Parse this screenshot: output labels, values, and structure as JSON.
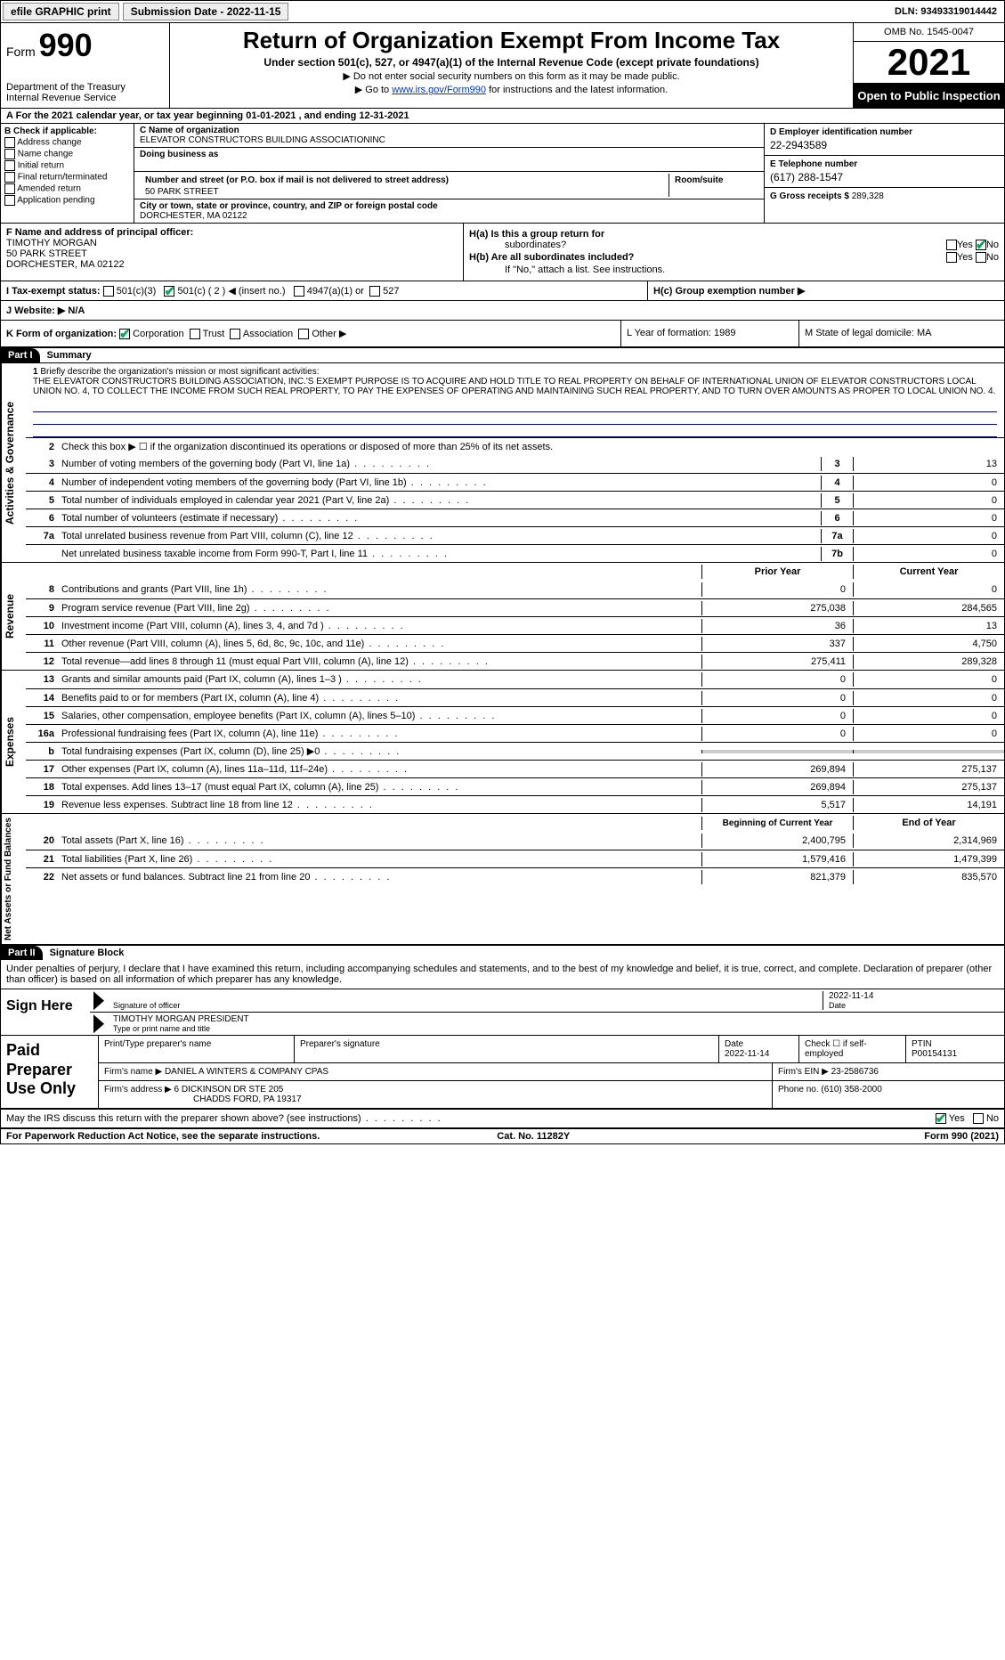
{
  "topbar": {
    "efile": "efile GRAPHIC print",
    "submission": "Submission Date - 2022-11-15",
    "dln": "DLN: 93493319014442"
  },
  "header": {
    "form_label": "Form",
    "form_num": "990",
    "dept": "Department of the Treasury",
    "irs": "Internal Revenue Service",
    "title": "Return of Organization Exempt From Income Tax",
    "sub": "Under section 501(c), 527, or 4947(a)(1) of the Internal Revenue Code (except private foundations)",
    "line1_pre": "▶ Do not enter social security numbers on this form as it may be made public.",
    "line2_pre": "▶ Go to ",
    "line2_link": "www.irs.gov/Form990",
    "line2_post": " for instructions and the latest information.",
    "omb": "OMB No. 1545-0047",
    "year": "2021",
    "open": "Open to Public Inspection"
  },
  "rowA": "For the 2021 calendar year, or tax year beginning 01-01-2021   , and ending 12-31-2021",
  "boxB": {
    "title": "B Check if applicable:",
    "items": [
      "Address change",
      "Name change",
      "Initial return",
      "Final return/terminated",
      "Amended return",
      "Application pending"
    ]
  },
  "boxC": {
    "name_label": "C Name of organization",
    "name": "ELEVATOR CONSTRUCTORS BUILDING ASSOCIATIONINC",
    "dba_label": "Doing business as",
    "street_label": "Number and street (or P.O. box if mail is not delivered to street address)",
    "room_label": "Room/suite",
    "street": "50 PARK STREET",
    "city_label": "City or town, state or province, country, and ZIP or foreign postal code",
    "city": "DORCHESTER, MA  02122"
  },
  "boxD": {
    "label": "D Employer identification number",
    "val": "22-2943589"
  },
  "boxE": {
    "label": "E Telephone number",
    "val": "(617) 288-1547"
  },
  "boxG": {
    "label": "G Gross receipts $",
    "val": "289,328"
  },
  "boxF": {
    "label": "F  Name and address of principal officer:",
    "name": "TIMOTHY MORGAN",
    "street": "50 PARK STREET",
    "city": "DORCHESTER, MA  02122"
  },
  "boxH": {
    "a_label": "H(a)  Is this a group return for",
    "a_sub": "subordinates?",
    "b_label": "H(b)  Are all subordinates included?",
    "b_note": "If \"No,\" attach a list. See instructions.",
    "c_label": "H(c)  Group exemption number ▶"
  },
  "rowI": {
    "label": "I    Tax-exempt status:",
    "opts": [
      "501(c)(3)",
      "501(c) ( 2 ) ◀ (insert no.)",
      "4947(a)(1) or",
      "527"
    ]
  },
  "rowJ": {
    "label": "J   Website: ▶",
    "val": "N/A"
  },
  "rowK": {
    "label": "K Form of organization:",
    "opts": [
      "Corporation",
      "Trust",
      "Association",
      "Other ▶"
    ],
    "L": "L Year of formation: 1989",
    "M": "M State of legal domicile: MA"
  },
  "part1": {
    "hdr": "Part I",
    "title": "Summary",
    "side1": "Activities & Governance",
    "side2": "Revenue",
    "side3": "Expenses",
    "side4": "Net Assets or Fund Balances",
    "l1": "Briefly describe the organization's mission or most significant activities:",
    "mission": "THE ELEVATOR CONSTRUCTORS BUILDING ASSOCIATION, INC.'S EXEMPT PURPOSE IS TO ACQUIRE AND HOLD TITLE TO REAL PROPERTY ON BEHALF OF INTERNATIONAL UNION OF ELEVATOR CONSTRUCTORS LOCAL UNION NO. 4, TO COLLECT THE INCOME FROM SUCH REAL PROPERTY, TO PAY THE EXPENSES OF OPERATING AND MAINTAINING SUCH REAL PROPERTY, AND TO TURN OVER AMOUNTS AS PROPER TO LOCAL UNION NO. 4.",
    "l2": "Check this box ▶ ☐  if the organization discontinued its operations or disposed of more than 25% of its net assets.",
    "lines_ag": [
      {
        "n": "3",
        "t": "Number of voting members of the governing body (Part VI, line 1a)",
        "b": "3",
        "v": "13"
      },
      {
        "n": "4",
        "t": "Number of independent voting members of the governing body (Part VI, line 1b)",
        "b": "4",
        "v": "0"
      },
      {
        "n": "5",
        "t": "Total number of individuals employed in calendar year 2021 (Part V, line 2a)",
        "b": "5",
        "v": "0"
      },
      {
        "n": "6",
        "t": "Total number of volunteers (estimate if necessary)",
        "b": "6",
        "v": "0"
      },
      {
        "n": "7a",
        "t": "Total unrelated business revenue from Part VIII, column (C), line 12",
        "b": "7a",
        "v": "0"
      },
      {
        "n": "",
        "t": "Net unrelated business taxable income from Form 990-T, Part I, line 11",
        "b": "7b",
        "v": "0"
      }
    ],
    "col_prior": "Prior Year",
    "col_curr": "Current Year",
    "lines_rev": [
      {
        "n": "8",
        "t": "Contributions and grants (Part VIII, line 1h)",
        "p": "0",
        "c": "0"
      },
      {
        "n": "9",
        "t": "Program service revenue (Part VIII, line 2g)",
        "p": "275,038",
        "c": "284,565"
      },
      {
        "n": "10",
        "t": "Investment income (Part VIII, column (A), lines 3, 4, and 7d )",
        "p": "36",
        "c": "13"
      },
      {
        "n": "11",
        "t": "Other revenue (Part VIII, column (A), lines 5, 6d, 8c, 9c, 10c, and 11e)",
        "p": "337",
        "c": "4,750"
      },
      {
        "n": "12",
        "t": "Total revenue—add lines 8 through 11 (must equal Part VIII, column (A), line 12)",
        "p": "275,411",
        "c": "289,328"
      }
    ],
    "lines_exp": [
      {
        "n": "13",
        "t": "Grants and similar amounts paid (Part IX, column (A), lines 1–3 )",
        "p": "0",
        "c": "0"
      },
      {
        "n": "14",
        "t": "Benefits paid to or for members (Part IX, column (A), line 4)",
        "p": "0",
        "c": "0"
      },
      {
        "n": "15",
        "t": "Salaries, other compensation, employee benefits (Part IX, column (A), lines 5–10)",
        "p": "0",
        "c": "0"
      },
      {
        "n": "16a",
        "t": "Professional fundraising fees (Part IX, column (A), line 11e)",
        "p": "0",
        "c": "0"
      },
      {
        "n": "b",
        "t": "Total fundraising expenses (Part IX, column (D), line 25) ▶0",
        "p": "",
        "c": "",
        "shade": true
      },
      {
        "n": "17",
        "t": "Other expenses (Part IX, column (A), lines 11a–11d, 11f–24e)",
        "p": "269,894",
        "c": "275,137"
      },
      {
        "n": "18",
        "t": "Total expenses. Add lines 13–17 (must equal Part IX, column (A), line 25)",
        "p": "269,894",
        "c": "275,137"
      },
      {
        "n": "19",
        "t": "Revenue less expenses. Subtract line 18 from line 12",
        "p": "5,517",
        "c": "14,191"
      }
    ],
    "col_beg": "Beginning of Current Year",
    "col_end": "End of Year",
    "lines_na": [
      {
        "n": "20",
        "t": "Total assets (Part X, line 16)",
        "p": "2,400,795",
        "c": "2,314,969"
      },
      {
        "n": "21",
        "t": "Total liabilities (Part X, line 26)",
        "p": "1,579,416",
        "c": "1,479,399"
      },
      {
        "n": "22",
        "t": "Net assets or fund balances. Subtract line 21 from line 20",
        "p": "821,379",
        "c": "835,570"
      }
    ]
  },
  "part2": {
    "hdr": "Part II",
    "title": "Signature Block",
    "decl": "Under penalties of perjury, I declare that I have examined this return, including accompanying schedules and statements, and to the best of my knowledge and belief, it is true, correct, and complete. Declaration of preparer (other than officer) is based on all information of which preparer has any knowledge.",
    "sign_here": "Sign Here",
    "sig_officer": "Signature of officer",
    "sig_date": "Date",
    "sig_date_val": "2022-11-14",
    "officer": "TIMOTHY MORGAN  PRESIDENT",
    "type_name": "Type or print name and title",
    "paid": "Paid Preparer Use Only",
    "prep_name_label": "Print/Type preparer's name",
    "prep_sig_label": "Preparer's signature",
    "prep_date_label": "Date",
    "prep_date": "2022-11-14",
    "prep_check": "Check ☐ if self-employed",
    "ptin_label": "PTIN",
    "ptin": "P00154131",
    "firm_name_label": "Firm's name    ▶",
    "firm_name": "DANIEL A WINTERS & COMPANY CPAS",
    "firm_ein_label": "Firm's EIN ▶",
    "firm_ein": "23-2586736",
    "firm_addr_label": "Firm's address ▶",
    "firm_addr1": "6 DICKINSON DR STE 205",
    "firm_addr2": "CHADDS FORD, PA  19317",
    "phone_label": "Phone no.",
    "phone": "(610) 358-2000",
    "discuss": "May the IRS discuss this return with the preparer shown above? (see instructions)"
  },
  "footer": {
    "left": "For Paperwork Reduction Act Notice, see the separate instructions.",
    "mid": "Cat. No. 11282Y",
    "right": "Form 990 (2021)"
  },
  "yn": {
    "yes": "Yes",
    "no": "No"
  }
}
